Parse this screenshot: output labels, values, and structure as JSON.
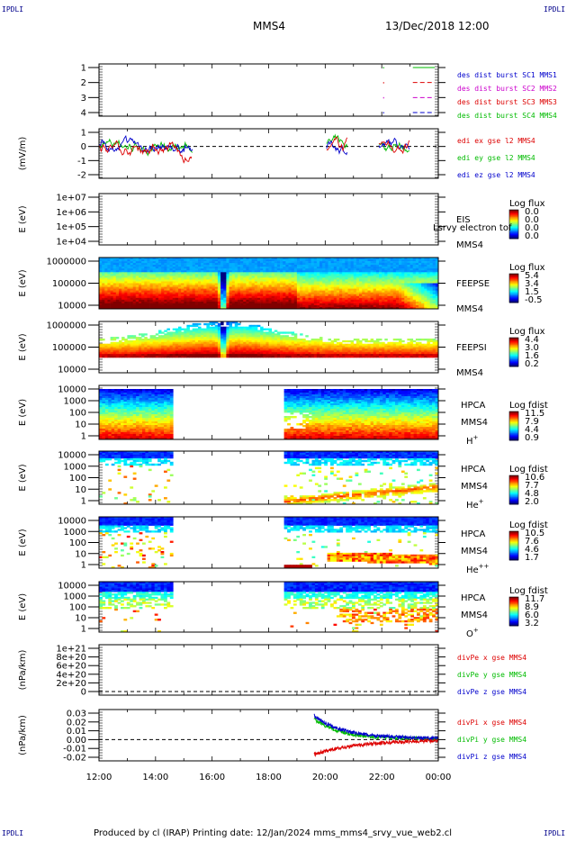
{
  "header": {
    "corner_tl": "IPDLI",
    "corner_tr": "IPDLI",
    "corner_bl": "IPDLI",
    "corner_br": "IPDLI",
    "spacecraft": "MMS4",
    "datetime": "13/Dec/2018 12:00"
  },
  "footer": "Produced by cl (IRAP)   Printing date: 12/Jan/2024   mms_mms4_srvy_vue_web2.cl",
  "colors": {
    "red": "#dd0000",
    "green": "#00bb00",
    "blue": "#0000cc",
    "magenta": "#cc00cc",
    "black": "#000000"
  },
  "chart_data": [
    {
      "type": "line",
      "ylim": [
        0.5,
        4.5
      ],
      "yticks": [
        "1",
        "2",
        "3",
        "4"
      ],
      "series": [
        {
          "name": "des dist burst SC1 MMS1",
          "color": "#0000cc"
        },
        {
          "name": "des dist burst SC2 MMS2",
          "color": "#cc00cc"
        },
        {
          "name": "des dist burst SC3 MMS3",
          "color": "#dd0000"
        },
        {
          "name": "des dist burst SC4 MMS4",
          "color": "#00bb00"
        }
      ]
    },
    {
      "type": "line",
      "ylabel": "(mV/m)",
      "ylim": [
        -2,
        1.5
      ],
      "yticks": [
        "1",
        "0",
        "-1",
        "-2"
      ],
      "series": [
        {
          "name": "edi ex gse l2 MMS4",
          "color": "#dd0000"
        },
        {
          "name": "edi ey gse l2 MMS4",
          "color": "#00bb00"
        },
        {
          "name": "edi ez gse l2 MMS4",
          "color": "#0000cc"
        }
      ]
    },
    {
      "type": "heatmap",
      "ylabel": "E (eV)",
      "yticks": [
        "1e+07",
        "1e+06",
        "1e+05",
        "1e+04"
      ],
      "right_labels": [
        "EIS",
        "MMS4"
      ],
      "overlay_text": "Lsrvy electron tof",
      "colorbar": {
        "title": "Log flux",
        "ticks": [
          "0.0",
          "0.0",
          "0.0",
          "0.0"
        ]
      }
    },
    {
      "type": "heatmap",
      "ylabel": "E (eV)",
      "yticks": [
        "1000000",
        "100000",
        "10000"
      ],
      "right_labels": [
        "FEEPSE",
        "MMS4"
      ],
      "colorbar": {
        "title": "Log flux",
        "ticks": [
          "5.4",
          "3.4",
          "1.5",
          "-0.5"
        ]
      }
    },
    {
      "type": "heatmap",
      "ylabel": "E (eV)",
      "yticks": [
        "1000000",
        "100000",
        "10000"
      ],
      "right_labels": [
        "FEEPSI",
        "MMS4"
      ],
      "colorbar": {
        "title": "Log flux",
        "ticks": [
          "4.4",
          "3.0",
          "1.6",
          "0.2"
        ]
      }
    },
    {
      "type": "heatmap",
      "ylabel": "E (eV)",
      "yticks": [
        "10000",
        "1000",
        "100",
        "10",
        "1"
      ],
      "right_labels": [
        "HPCA",
        "MMS4"
      ],
      "species": "H",
      "species_sup": "+",
      "colorbar": {
        "title": "Log fdist",
        "ticks": [
          "11.5",
          "7.9",
          "4.4",
          "0.9"
        ]
      }
    },
    {
      "type": "heatmap",
      "ylabel": "E (eV)",
      "yticks": [
        "10000",
        "1000",
        "100",
        "10",
        "1"
      ],
      "right_labels": [
        "HPCA",
        "MMS4"
      ],
      "species": "He",
      "species_sup": "+",
      "colorbar": {
        "title": "Log fdist",
        "ticks": [
          "10.6",
          "7.7",
          "4.8",
          "2.0"
        ]
      }
    },
    {
      "type": "heatmap",
      "ylabel": "E (eV)",
      "yticks": [
        "10000",
        "1000",
        "100",
        "10",
        "1"
      ],
      "right_labels": [
        "HPCA",
        "MMS4"
      ],
      "species": "He",
      "species_sup": "++",
      "colorbar": {
        "title": "Log fdist",
        "ticks": [
          "10.5",
          "7.6",
          "4.6",
          "1.7"
        ]
      }
    },
    {
      "type": "heatmap",
      "ylabel": "E (eV)",
      "yticks": [
        "10000",
        "1000",
        "100",
        "10",
        "1"
      ],
      "right_labels": [
        "HPCA",
        "MMS4"
      ],
      "species": "O",
      "species_sup": "+",
      "colorbar": {
        "title": "Log fdist",
        "ticks": [
          "11.7",
          "8.9",
          "6.0",
          "3.2"
        ]
      }
    },
    {
      "type": "line",
      "ylabel": "(nPa/km)",
      "ylim": [
        0,
        1.1e+21
      ],
      "yticks": [
        "1e+21",
        "8e+20",
        "6e+20",
        "4e+20",
        "2e+20",
        "0"
      ],
      "series": [
        {
          "name": "divPe x gse MMS4",
          "color": "#dd0000"
        },
        {
          "name": "divPe y gse MMS4",
          "color": "#00bb00"
        },
        {
          "name": "divPe z gse MMS4",
          "color": "#0000cc"
        }
      ]
    },
    {
      "type": "line",
      "ylabel": "(nPa/km)",
      "ylim": [
        -0.025,
        0.035
      ],
      "yticks": [
        "0.03",
        "0.02",
        "0.01",
        "0.00",
        "-0.01",
        "-0.02"
      ],
      "series": [
        {
          "name": "divPi x gse MMS4",
          "color": "#dd0000"
        },
        {
          "name": "divPi y gse MMS4",
          "color": "#00bb00"
        },
        {
          "name": "divPi z gse MMS4",
          "color": "#0000cc"
        }
      ]
    }
  ],
  "xaxis": {
    "ticks": [
      "12:00",
      "14:00",
      "16:00",
      "18:00",
      "20:00",
      "22:00",
      "00:00"
    ]
  }
}
